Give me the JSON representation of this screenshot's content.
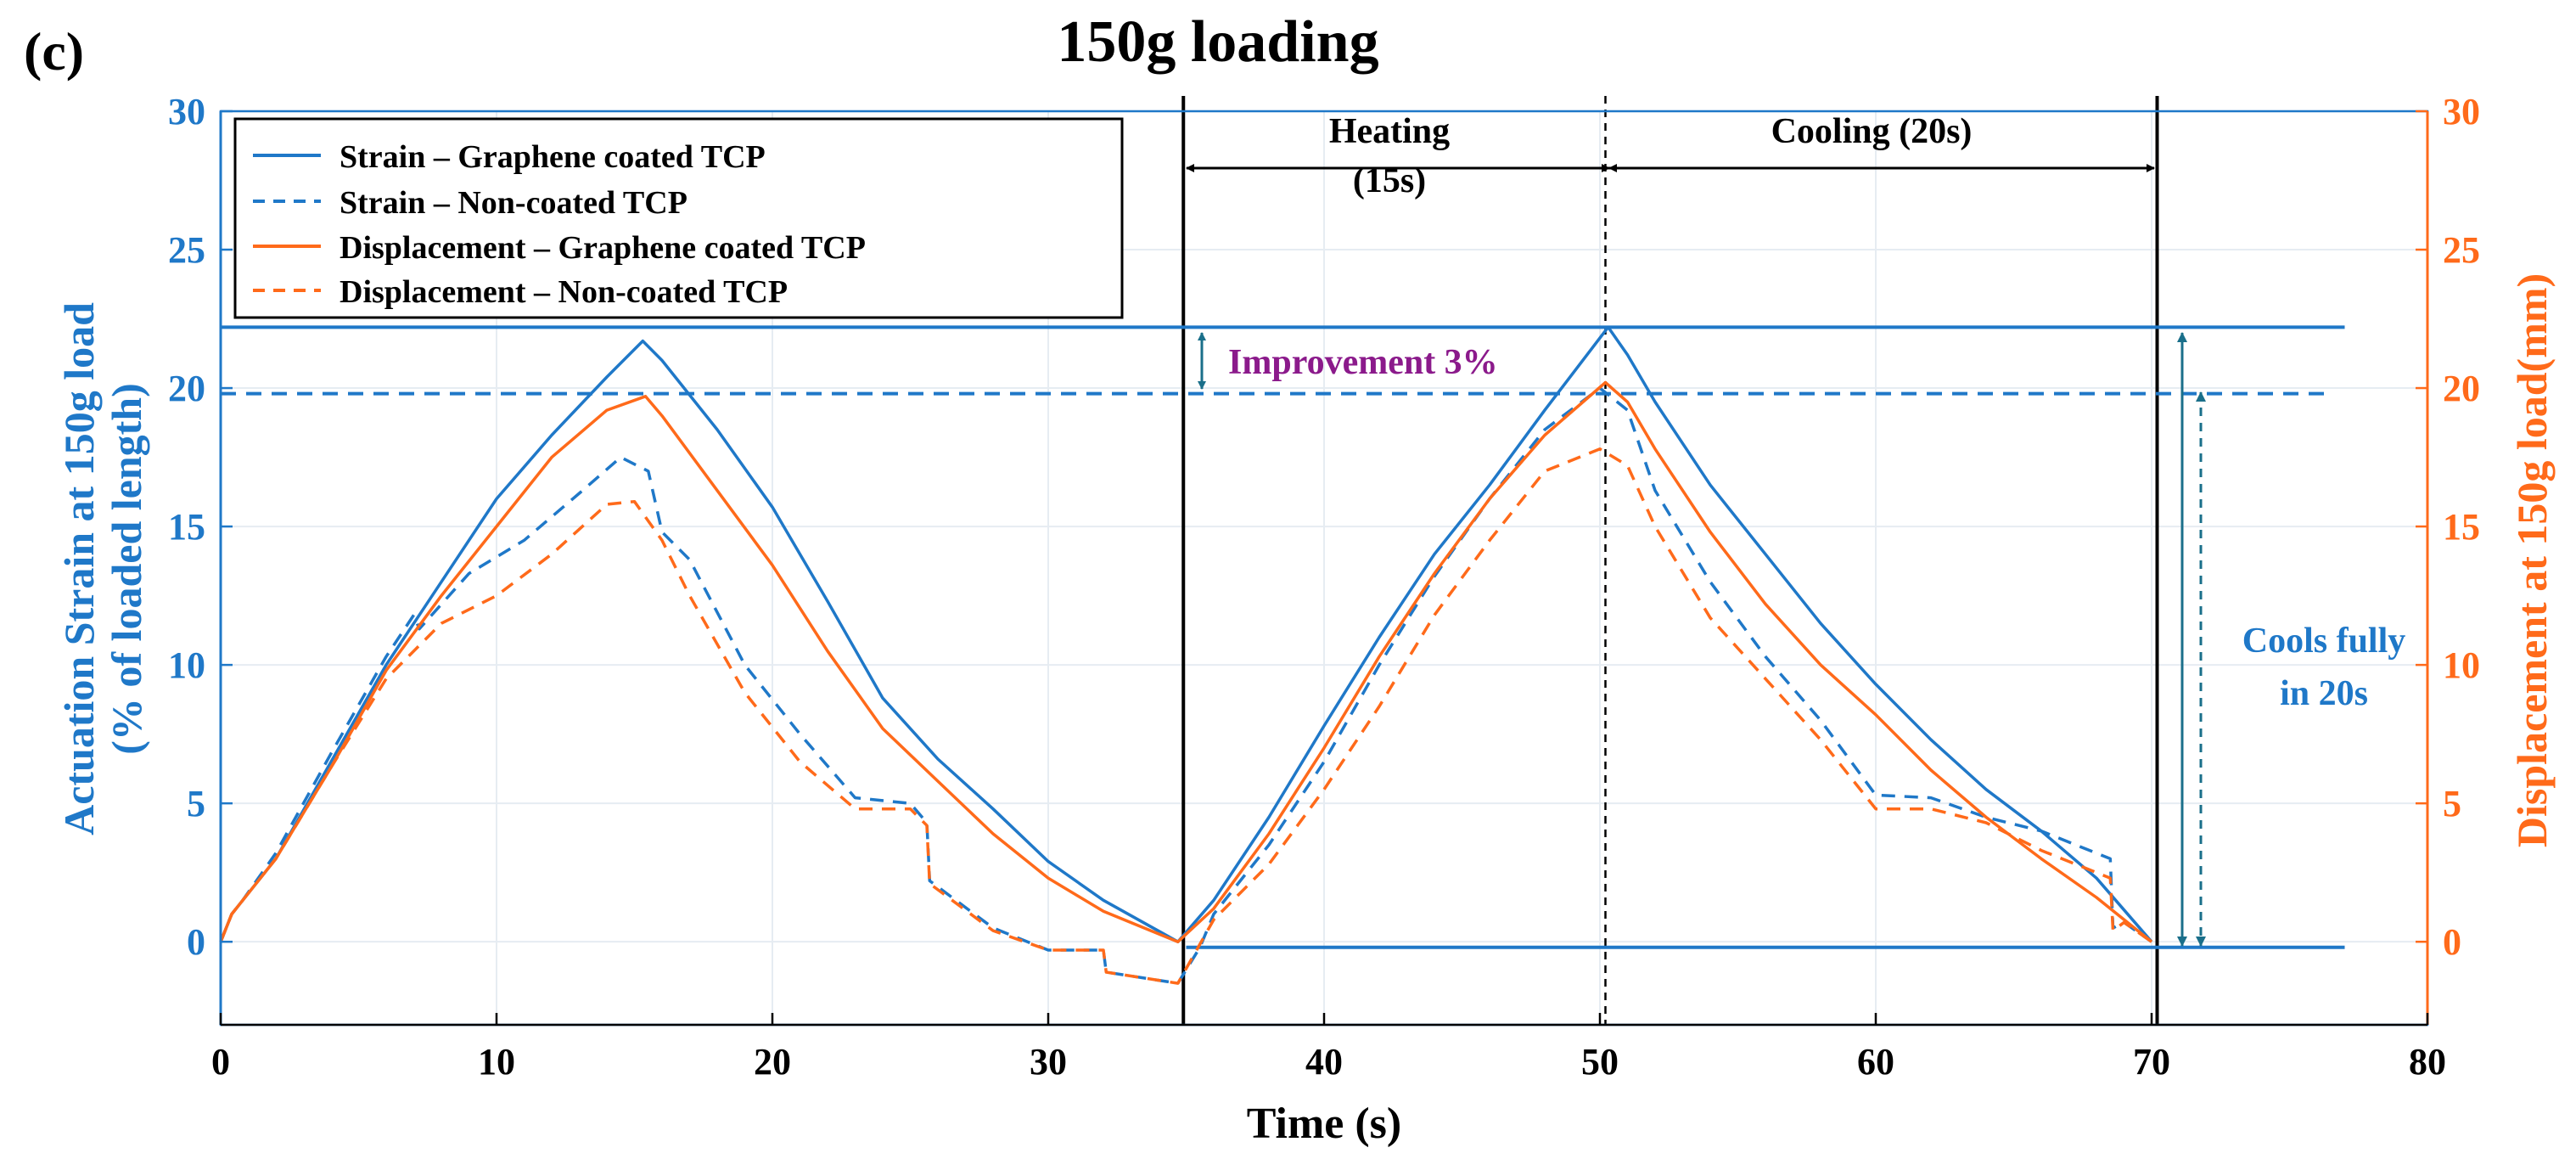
{
  "panel_label": "(c)",
  "colors": {
    "blue": "#1f78c8",
    "orange": "#ff6a1a",
    "purple": "#8b1a8b",
    "teal": "#1a6f8a",
    "grid": "#e6ecf2"
  },
  "chart_data": {
    "type": "line",
    "title": "150g loading",
    "xlabel": "Time (s)",
    "ylabel_left_line1": "Actuation Strain at 150g load",
    "ylabel_left_line2": "(% of loaded length)",
    "ylabel_right": "Displacement at 150g load(mm)",
    "xlim": [
      0,
      80
    ],
    "ylim_left": [
      -3,
      30
    ],
    "ylim_right": [
      -3,
      30
    ],
    "xticks": [
      0,
      10,
      20,
      30,
      40,
      50,
      60,
      70,
      80
    ],
    "yticks_left": [
      0,
      5,
      10,
      15,
      20,
      25,
      30
    ],
    "yticks_right": [
      0,
      5,
      10,
      15,
      20,
      25,
      30
    ],
    "grid": true,
    "legend_position": "top-left",
    "series": [
      {
        "name": "Strain – Graphene coated TCP",
        "axis": "left",
        "color": "#1f78c8",
        "dash": "solid",
        "x": [
          0,
          0.4,
          0.8,
          2,
          4,
          6,
          8,
          10,
          12,
          14,
          15.3,
          16,
          18,
          20,
          22,
          24,
          26,
          28,
          30,
          32,
          34.7,
          36,
          38,
          40,
          42,
          44,
          46,
          48,
          50.3,
          51,
          52,
          54,
          56,
          58,
          60,
          62,
          64,
          66,
          68,
          70
        ],
        "y": [
          0,
          1,
          1.5,
          3,
          6.5,
          10,
          13,
          16,
          18.3,
          20.4,
          21.7,
          21.0,
          18.5,
          15.7,
          12.3,
          8.8,
          6.6,
          4.8,
          2.9,
          1.5,
          0.0,
          1.5,
          4.5,
          7.8,
          11,
          14,
          16.5,
          19.2,
          22.2,
          21.2,
          19.5,
          16.5,
          14,
          11.5,
          9.3,
          7.3,
          5.5,
          4,
          2.3,
          0.0
        ]
      },
      {
        "name": "Strain – Non-coated TCP",
        "axis": "left",
        "color": "#1f78c8",
        "dash": "dashed",
        "x": [
          0,
          0.4,
          0.8,
          2,
          4,
          6,
          7,
          7.2,
          9,
          11,
          13,
          14.5,
          15.5,
          16,
          17,
          19,
          21,
          23,
          25,
          25.6,
          25.7,
          28,
          30,
          32,
          32.1,
          34.7,
          35.5,
          36,
          38,
          40,
          42,
          44,
          46,
          48,
          50,
          51,
          52,
          54,
          56,
          58,
          60,
          62,
          64,
          66,
          68.5,
          68.6,
          69,
          70
        ],
        "y": [
          0,
          1,
          1.5,
          3.2,
          6.8,
          10.3,
          11.8,
          11.3,
          13.3,
          14.5,
          16.2,
          17.5,
          17.0,
          14.8,
          13.8,
          10,
          7.5,
          5.2,
          5.0,
          4.3,
          2.2,
          0.5,
          -0.3,
          -0.3,
          -1.1,
          -1.5,
          -0.2,
          1,
          3.5,
          6.5,
          10,
          13.2,
          16,
          18.5,
          20.0,
          19.2,
          16.3,
          13,
          10.3,
          8,
          5.3,
          5.2,
          4.5,
          4,
          3,
          0.5,
          0.7,
          0.0
        ]
      },
      {
        "name": "Displacement – Graphene coated TCP",
        "axis": "right",
        "color": "#ff6a1a",
        "dash": "solid",
        "x": [
          0,
          0.4,
          0.8,
          2,
          4,
          6,
          8,
          10,
          12,
          14,
          15.4,
          16,
          18,
          20,
          22,
          24,
          26,
          28,
          30,
          32,
          34.7,
          36,
          38,
          40,
          42,
          44,
          46,
          48,
          50.2,
          51,
          52,
          54,
          56,
          58,
          60,
          62,
          64,
          66,
          68,
          70
        ],
        "y": [
          0,
          1,
          1.5,
          3,
          6.3,
          9.8,
          12.5,
          15,
          17.5,
          19.2,
          19.7,
          19,
          16.3,
          13.6,
          10.5,
          7.7,
          5.8,
          3.9,
          2.3,
          1.1,
          0.0,
          1.2,
          3.9,
          7,
          10.3,
          13.3,
          16,
          18.3,
          20.2,
          19.5,
          17.8,
          14.8,
          12.2,
          10,
          8.2,
          6.2,
          4.5,
          3,
          1.6,
          0.0
        ]
      },
      {
        "name": "Displacement – Non-coated TCP",
        "axis": "right",
        "color": "#ff6a1a",
        "dash": "dashed",
        "x": [
          0,
          0.4,
          0.8,
          2,
          4,
          6,
          8,
          10,
          12,
          14,
          15,
          16,
          17,
          19,
          21,
          23,
          25,
          25.6,
          25.7,
          28,
          30,
          32,
          32.1,
          34.7,
          36,
          38,
          40,
          42,
          44,
          46,
          48,
          50,
          51,
          52,
          54,
          56,
          58,
          60,
          62,
          64,
          66,
          68.5,
          68.6,
          69,
          70
        ],
        "y": [
          0,
          1,
          1.5,
          3,
          6.3,
          9.5,
          11.5,
          12.5,
          14,
          15.8,
          15.9,
          14.5,
          12.5,
          9,
          6.5,
          4.8,
          4.8,
          4.2,
          2.1,
          0.4,
          -0.3,
          -0.3,
          -1.1,
          -1.5,
          0.8,
          2.8,
          5.5,
          8.5,
          11.8,
          14.5,
          17,
          17.8,
          17.2,
          15,
          11.7,
          9.5,
          7.3,
          4.8,
          4.8,
          4.3,
          3.3,
          2.3,
          0.4,
          0.7,
          0.0
        ]
      }
    ],
    "reference_lines": [
      {
        "type": "vertical",
        "x": 34.9,
        "style": "solid"
      },
      {
        "type": "vertical",
        "x": 50.2,
        "style": "dashed"
      },
      {
        "type": "vertical",
        "x": 70.2,
        "style": "solid"
      },
      {
        "type": "horizontal",
        "y": 22.2,
        "style": "solid",
        "color": "#1f78c8",
        "x_from": 0,
        "x_to": 77
      },
      {
        "type": "horizontal",
        "y": 19.8,
        "style": "dashed",
        "color": "#1f78c8",
        "x_from": 0,
        "x_to": 76.5
      },
      {
        "type": "horizontal",
        "y": -0.2,
        "style": "solid",
        "color": "#1f78c8",
        "x_from": 35,
        "x_to": 77
      }
    ],
    "annotations": {
      "heating_line1": "Heating",
      "heating_line2": "(15s)",
      "cooling": "Cooling (20s)",
      "improvement": "Improvement 3%",
      "cools_line1": "Cools fully",
      "cools_line2": "in 20s"
    }
  }
}
